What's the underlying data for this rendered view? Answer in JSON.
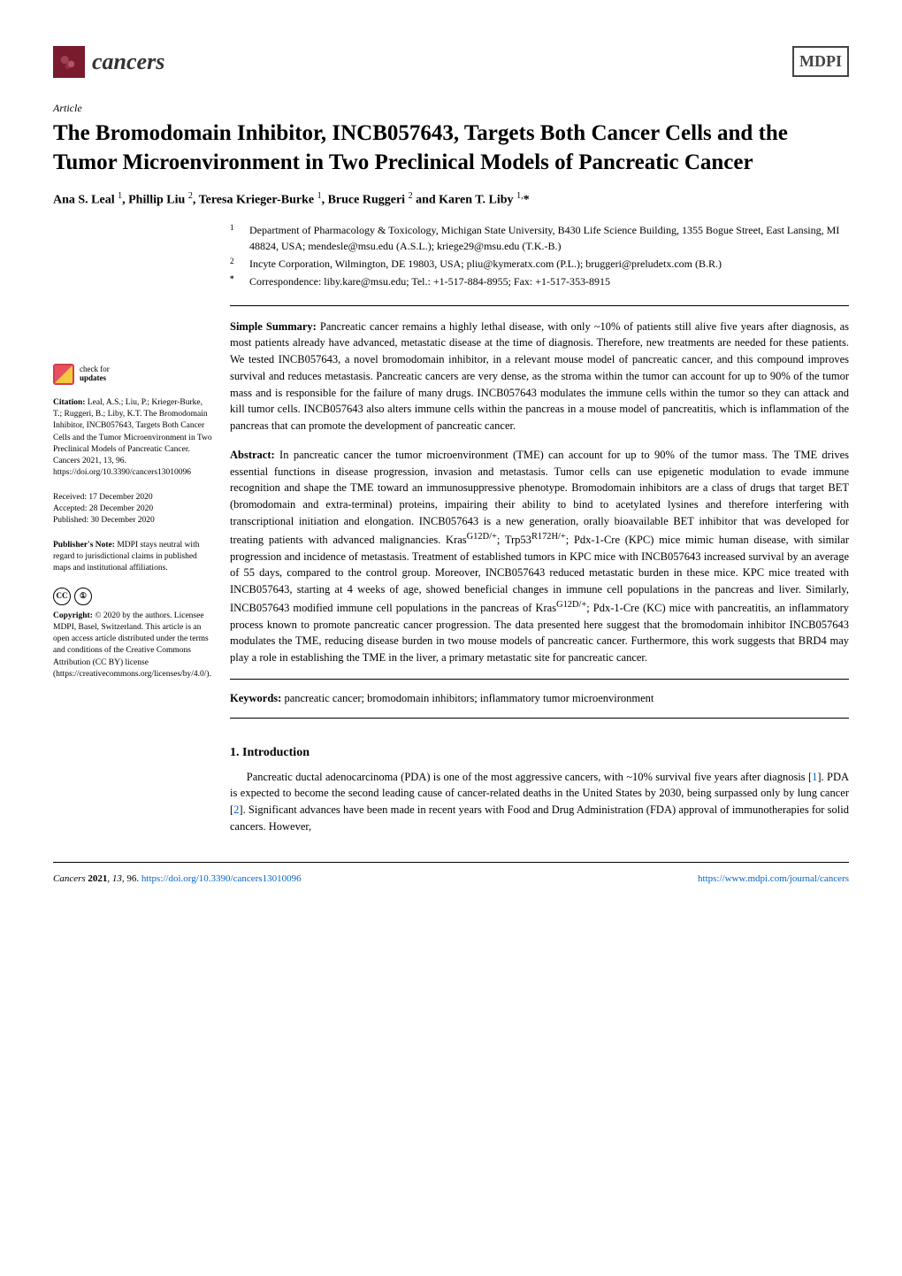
{
  "journal": {
    "name": "cancers",
    "publisher": "MDPI"
  },
  "article": {
    "type": "Article",
    "title": "The Bromodomain Inhibitor, INCB057643, Targets Both Cancer Cells and the Tumor Microenvironment in Two Preclinical Models of Pancreatic Cancer",
    "authors_html": "Ana S. Leal <sup>1</sup>, Phillip Liu <sup>2</sup>, Teresa Krieger-Burke <sup>1</sup>, Bruce Ruggeri <sup>2</sup> and Karen T. Liby <sup>1,</sup>*"
  },
  "affiliations": [
    {
      "num": "1",
      "text": "Department of Pharmacology & Toxicology, Michigan State University, B430 Life Science Building, 1355 Bogue Street, East Lansing, MI 48824, USA; mendesle@msu.edu (A.S.L.); kriege29@msu.edu (T.K.-B.)"
    },
    {
      "num": "2",
      "text": "Incyte Corporation, Wilmington, DE 19803, USA; pliu@kymeratx.com (P.L.); bruggeri@preludetx.com (B.R.)"
    },
    {
      "num": "*",
      "text": "Correspondence: liby.kare@msu.edu; Tel.: +1-517-884-8955; Fax: +1-517-353-8915"
    }
  ],
  "simple_summary": {
    "label": "Simple Summary:",
    "text": " Pancreatic cancer remains a highly lethal disease, with only ~10% of patients still alive five years after diagnosis, as most patients already have advanced, metastatic disease at the time of diagnosis. Therefore, new treatments are needed for these patients. We tested INCB057643, a novel bromodomain inhibitor, in a relevant mouse model of pancreatic cancer, and this compound improves survival and reduces metastasis. Pancreatic cancers are very dense, as the stroma within the tumor can account for up to 90% of the tumor mass and is responsible for the failure of many drugs. INCB057643 modulates the immune cells within the tumor so they can attack and kill tumor cells. INCB057643 also alters immune cells within the pancreas in a mouse model of pancreatitis, which is inflammation of the pancreas that can promote the development of pancreatic cancer."
  },
  "abstract": {
    "label": "Abstract:",
    "text": " In pancreatic cancer the tumor microenvironment (TME) can account for up to 90% of the tumor mass. The TME drives essential functions in disease progression, invasion and metastasis. Tumor cells can use epigenetic modulation to evade immune recognition and shape the TME toward an immunosuppressive phenotype. Bromodomain inhibitors are a class of drugs that target BET (bromodomain and extra-terminal) proteins, impairing their ability to bind to acetylated lysines and therefore interfering with transcriptional initiation and elongation. INCB057643 is a new generation, orally bioavailable BET inhibitor that was developed for treating patients with advanced malignancies. KrasG12D/+; Trp53R172H/+; Pdx-1-Cre (KPC) mice mimic human disease, with similar progression and incidence of metastasis. Treatment of established tumors in KPC mice with INCB057643 increased survival by an average of 55 days, compared to the control group. Moreover, INCB057643 reduced metastatic burden in these mice. KPC mice treated with INCB057643, starting at 4 weeks of age, showed beneficial changes in immune cell populations in the pancreas and liver. Similarly, INCB057643 modified immune cell populations in the pancreas of KrasG12D/+; Pdx-1-Cre (KC) mice with pancreatitis, an inflammatory process known to promote pancreatic cancer progression. The data presented here suggest that the bromodomain inhibitor INCB057643 modulates the TME, reducing disease burden in two mouse models of pancreatic cancer. Furthermore, this work suggests that BRD4 may play a role in establishing the TME in the liver, a primary metastatic site for pancreatic cancer."
  },
  "keywords": {
    "label": "Keywords:",
    "text": " pancreatic cancer; bromodomain inhibitors; inflammatory tumor microenvironment"
  },
  "sidebar": {
    "check_updates": {
      "line1": "check for",
      "line2": "updates"
    },
    "citation": {
      "label": "Citation:",
      "text": " Leal, A.S.; Liu, P.; Krieger-Burke, T.; Ruggeri, B.; Liby, K.T. The Bromodomain Inhibitor, INCB057643, Targets Both Cancer Cells and the Tumor Microenvironment in Two Preclinical Models of Pancreatic Cancer. Cancers 2021, 13, 96. https://doi.org/10.3390/cancers13010096"
    },
    "dates": {
      "received": "Received: 17 December 2020",
      "accepted": "Accepted: 28 December 2020",
      "published": "Published: 30 December 2020"
    },
    "publishers_note": {
      "label": "Publisher's Note:",
      "text": " MDPI stays neutral with regard to jurisdictional claims in published maps and institutional affiliations."
    },
    "copyright": {
      "label": "Copyright:",
      "text": " © 2020 by the authors. Licensee MDPI, Basel, Switzerland. This article is an open access article distributed under the terms and conditions of the Creative Commons Attribution (CC BY) license (https://creativecommons.org/licenses/by/4.0/)."
    }
  },
  "section": {
    "heading": "1. Introduction",
    "para": "Pancreatic ductal adenocarcinoma (PDA) is one of the most aggressive cancers, with ~10% survival five years after diagnosis [1]. PDA is expected to become the second leading cause of cancer-related deaths in the United States by 2030, being surpassed only by lung cancer [2]. Significant advances have been made in recent years with Food and Drug Administration (FDA) approval of immunotherapies for solid cancers. However,"
  },
  "footer": {
    "left": "Cancers 2021, 13, 96. https://doi.org/10.3390/cancers13010096",
    "right": "https://www.mdpi.com/journal/cancers"
  }
}
